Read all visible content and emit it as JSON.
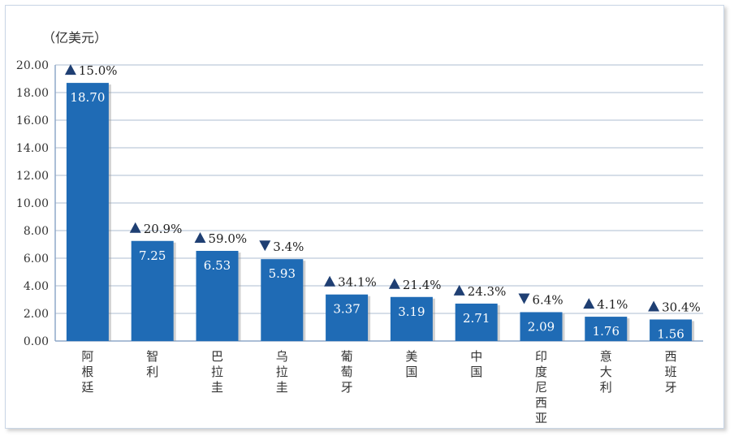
{
  "chart_data": {
    "type": "bar",
    "unit": "（亿美元）",
    "categories": [
      "阿根廷",
      "智利",
      "巴拉圭",
      "乌拉圭",
      "葡萄牙",
      "美国",
      "中国",
      "印度尼西亚",
      "意大利",
      "西班牙"
    ],
    "values": [
      18.7,
      7.25,
      6.53,
      5.93,
      3.37,
      3.19,
      2.71,
      2.09,
      1.76,
      1.56
    ],
    "value_labels": [
      "18.70",
      "7.25",
      "6.53",
      "5.93",
      "3.37",
      "3.19",
      "2.71",
      "2.09",
      "1.76",
      "1.56"
    ],
    "changes": [
      "15.0%",
      "20.9%",
      "59.0%",
      "3.4%",
      "34.1%",
      "21.4%",
      "24.3%",
      "6.4%",
      "4.1%",
      "30.4%"
    ],
    "change_directions": [
      "up",
      "up",
      "up",
      "down",
      "up",
      "up",
      "up",
      "down",
      "up",
      "up"
    ],
    "ylim": [
      0,
      20
    ],
    "yticks": [
      "0.00",
      "2.00",
      "4.00",
      "6.00",
      "8.00",
      "10.00",
      "12.00",
      "14.00",
      "16.00",
      "18.00",
      "20.00"
    ],
    "grid": true,
    "legend": "none",
    "colors": {
      "bar": "#1f6bb5",
      "grid": "#c8d3e0",
      "axis": "#8fa8c8",
      "arrow": "#1f3f73"
    }
  }
}
